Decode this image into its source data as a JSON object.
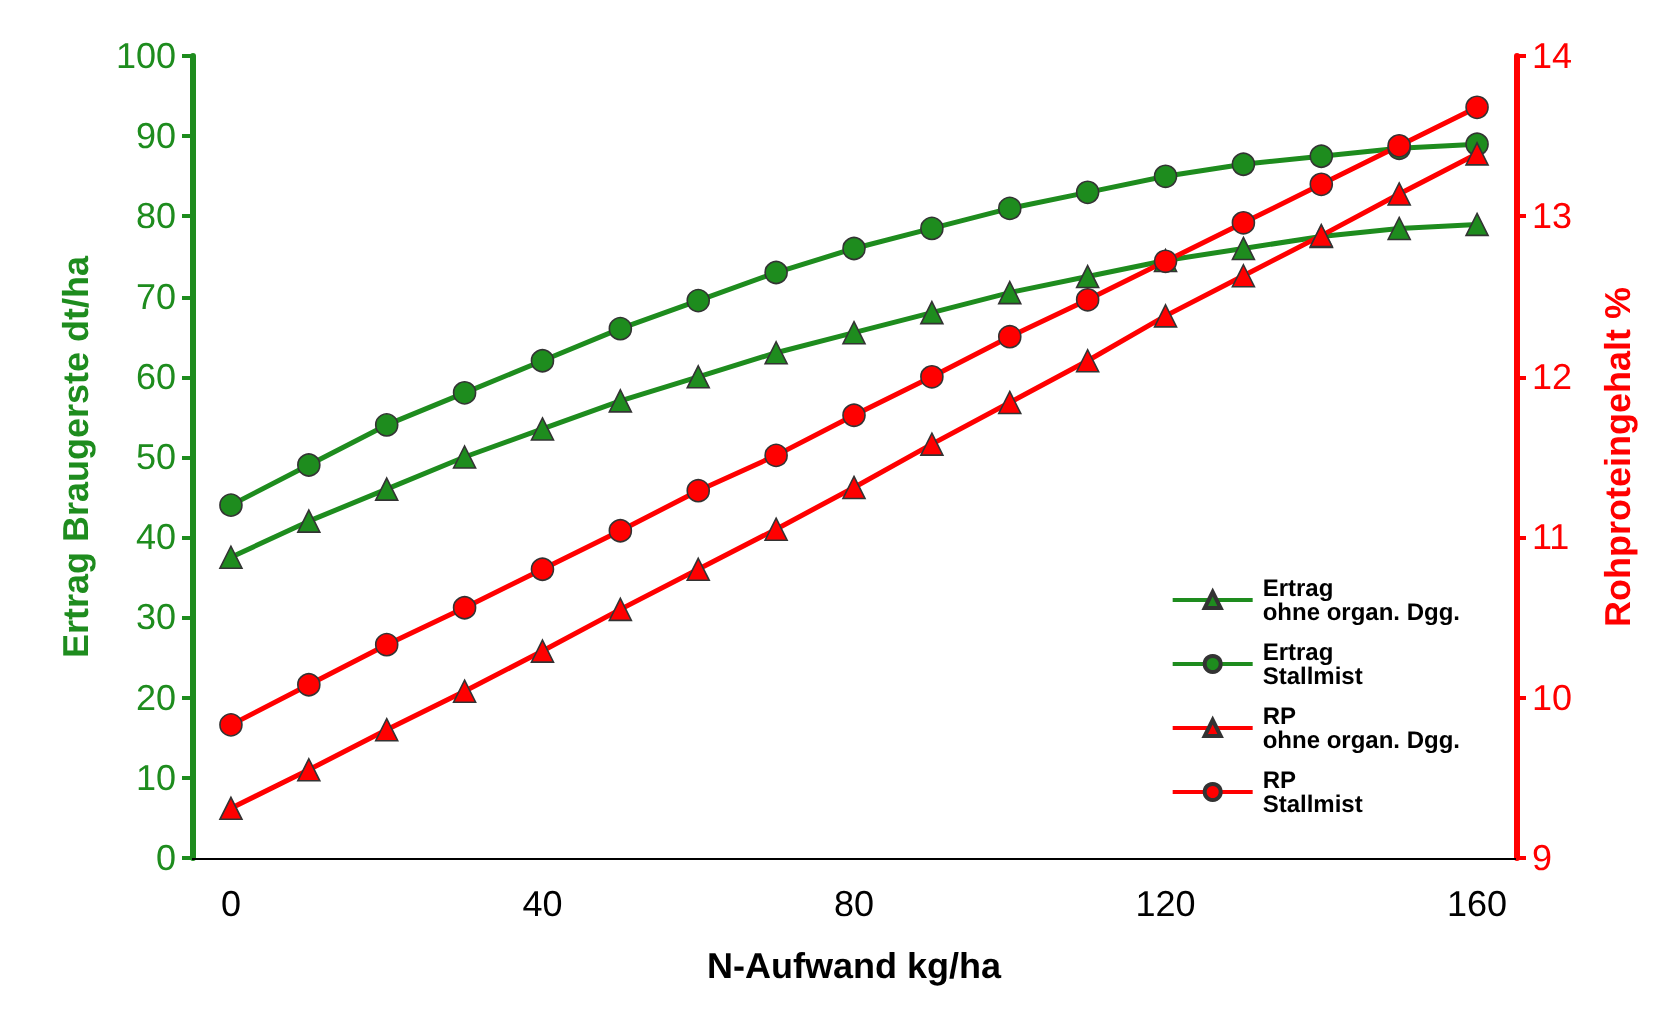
{
  "chart_data": {
    "type": "line",
    "xlabel": "N-Aufwand kg/ha",
    "ylabel": "Ertrag Braugerste dt/ha",
    "y2label": "Rohproteingehalt %",
    "x": [
      0,
      10,
      20,
      30,
      40,
      50,
      60,
      70,
      80,
      90,
      100,
      110,
      120,
      130,
      140,
      150,
      160
    ],
    "xlim": [
      -5,
      165
    ],
    "xticks": [
      0,
      40,
      80,
      120,
      160
    ],
    "ylim": [
      0,
      100
    ],
    "yticks": [
      0,
      10,
      20,
      30,
      40,
      50,
      60,
      70,
      80,
      90,
      100
    ],
    "y2lim": [
      9,
      14
    ],
    "y2ticks": [
      9,
      10,
      11,
      12,
      13,
      14
    ],
    "grid": false,
    "legend": "bottom right",
    "line_style": "solid",
    "series": [
      {
        "name": "Ertrag\nohne organ. Dgg.",
        "color": "#1e8c1e",
        "marker": "triangle",
        "values": [
          37.5,
          42,
          46,
          50,
          53.5,
          57,
          60,
          63,
          65.5,
          68,
          70.5,
          72.5,
          74.5,
          76,
          77.5,
          78.5,
          79
        ]
      },
      {
        "name": "Ertrag\nStallmist",
        "color": "#1e8c1e",
        "marker": "circle",
        "values": [
          44,
          49,
          54,
          58,
          62,
          66,
          69.5,
          73,
          76,
          78.5,
          81,
          83,
          85,
          86.5,
          87.5,
          88.5,
          89
        ]
      },
      {
        "name": "RP\nohne organ. Dgg.",
        "color": "#ff0000",
        "marker": "triangle",
        "axis": "y2",
        "values": [
          9.31,
          9.55,
          9.8,
          10.04,
          10.29,
          10.55,
          10.8,
          11.05,
          11.31,
          11.58,
          11.84,
          12.1,
          12.38,
          12.63,
          12.88,
          13.14,
          13.39
        ]
      },
      {
        "name": "RP\nStallmist",
        "color": "#ff0000",
        "marker": "circle",
        "axis": "y2",
        "values": [
          9.83,
          10.08,
          10.33,
          10.56,
          10.8,
          11.04,
          11.29,
          11.51,
          11.76,
          12.0,
          12.25,
          12.48,
          12.72,
          12.96,
          13.2,
          13.44,
          13.68
        ]
      }
    ]
  }
}
